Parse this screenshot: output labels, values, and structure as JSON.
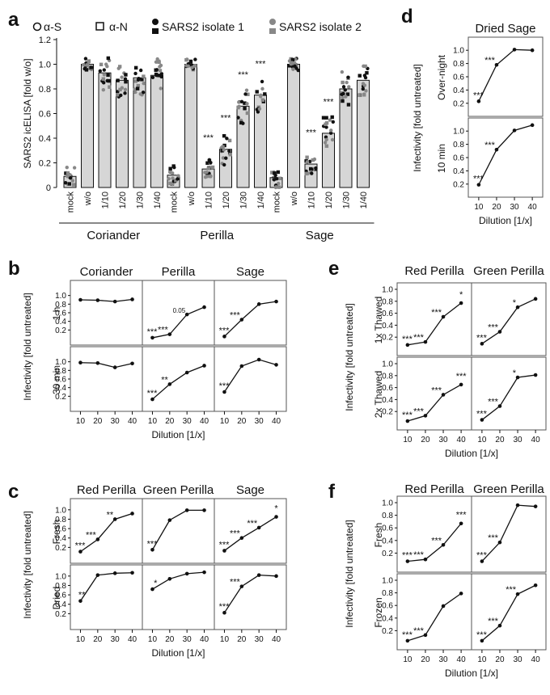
{
  "colors": {
    "bar": "#d6d6d6",
    "dark": "#111111",
    "gray": "#888888",
    "panel_border": "#555555"
  },
  "panel_labels": {
    "a": "a",
    "b": "b",
    "c": "c",
    "d": "d",
    "e": "e",
    "f": "f"
  },
  "legend": [
    "α-S",
    "α-N",
    "SARS2 isolate 1",
    "SARS2 isolate 2"
  ],
  "common": {
    "y_label_infectivity": "Infectivity [fold untreated]",
    "x_label_dilution": "Dilution [1/x]",
    "x_ticks": [
      "10",
      "20",
      "30",
      "40"
    ],
    "y_ticks": [
      "0.2",
      "0.4",
      "0.6",
      "0.8",
      "1.0"
    ]
  },
  "chart_data": [
    {
      "id": "a",
      "type": "bar",
      "ylabel": "SARS2 icELISA [fold w/o]",
      "ylim": [
        0,
        1.2
      ],
      "y_ticks": [
        "0",
        "0.2",
        "0.4",
        "0.6",
        "0.8",
        "1.0",
        "1.2"
      ],
      "categories": [
        "mock",
        "w/o",
        "1/10",
        "1/20",
        "1/30",
        "1/40"
      ],
      "groups": [
        {
          "name": "Coriander",
          "values": [
            0.09,
            1.0,
            0.93,
            0.87,
            0.89,
            0.91
          ],
          "stars": [
            "",
            "",
            "",
            "",
            "",
            ""
          ]
        },
        {
          "name": "Perilla",
          "values": [
            0.1,
            1.0,
            0.15,
            0.31,
            0.66,
            0.75
          ],
          "stars": [
            "",
            "",
            "***",
            "***",
            "***",
            "***"
          ]
        },
        {
          "name": "Sage",
          "values": [
            0.08,
            1.0,
            0.19,
            0.44,
            0.8,
            0.87
          ],
          "stars": [
            "",
            "",
            "***",
            "***",
            "",
            ""
          ]
        }
      ]
    },
    {
      "id": "b",
      "type": "line",
      "columns": [
        "Coriander",
        "Perilla",
        "Sage"
      ],
      "rows": [
        "1 h",
        "30 min"
      ],
      "x": [
        10,
        20,
        30,
        40
      ],
      "ylim": [
        0,
        1.2
      ],
      "y_ticks": [
        "0.2",
        "0.4",
        "0.6",
        "0.8",
        "1.0"
      ],
      "series": [
        {
          "row": 0,
          "col": 0,
          "values": [
            0.9,
            0.89,
            0.86,
            0.91
          ],
          "stars": [
            "",
            "",
            "",
            ""
          ]
        },
        {
          "row": 0,
          "col": 1,
          "values": [
            0.02,
            0.1,
            0.56,
            0.73
          ],
          "stars": [
            "***",
            "***",
            "0.05",
            ""
          ]
        },
        {
          "row": 0,
          "col": 2,
          "values": [
            0.05,
            0.44,
            0.8,
            0.86
          ],
          "stars": [
            "***",
            "***",
            "",
            ""
          ]
        },
        {
          "row": 1,
          "col": 0,
          "values": [
            0.98,
            0.97,
            0.87,
            0.96
          ],
          "stars": [
            "",
            "",
            "",
            ""
          ]
        },
        {
          "row": 1,
          "col": 1,
          "values": [
            0.13,
            0.48,
            0.75,
            0.91
          ],
          "stars": [
            "***",
            "**",
            "",
            ""
          ]
        },
        {
          "row": 1,
          "col": 2,
          "values": [
            0.3,
            0.9,
            1.05,
            0.93
          ],
          "stars": [
            "***",
            "",
            "",
            ""
          ]
        }
      ]
    },
    {
      "id": "c",
      "type": "line",
      "columns": [
        "Red Perilla",
        "Green Perilla",
        "Sage"
      ],
      "rows": [
        "Fresh",
        "Dried"
      ],
      "x": [
        10,
        20,
        30,
        40
      ],
      "ylim": [
        0,
        1.1
      ],
      "y_ticks": [
        "0.2",
        "0.4",
        "0.6",
        "0.8",
        "1.0"
      ],
      "series": [
        {
          "row": 0,
          "col": 0,
          "values": [
            0.11,
            0.37,
            0.8,
            0.92
          ],
          "stars": [
            "***",
            "***",
            "**",
            ""
          ]
        },
        {
          "row": 0,
          "col": 1,
          "values": [
            0.15,
            0.78,
            0.99,
            0.99
          ],
          "stars": [
            "***",
            "",
            "",
            ""
          ]
        },
        {
          "row": 0,
          "col": 2,
          "values": [
            0.13,
            0.4,
            0.62,
            0.85
          ],
          "stars": [
            "***",
            "***",
            "***",
            "*"
          ]
        },
        {
          "row": 1,
          "col": 0,
          "values": [
            0.47,
            1.02,
            1.06,
            1.07
          ],
          "stars": [
            "**",
            "",
            "",
            ""
          ]
        },
        {
          "row": 1,
          "col": 1,
          "values": [
            0.72,
            0.94,
            1.05,
            1.08
          ],
          "stars": [
            "*",
            "",
            "",
            ""
          ]
        },
        {
          "row": 1,
          "col": 2,
          "values": [
            0.22,
            0.78,
            1.02,
            1.0
          ],
          "stars": [
            "***",
            "***",
            "",
            ""
          ]
        }
      ]
    },
    {
      "id": "d",
      "type": "line",
      "columns": [
        "Dried Sage"
      ],
      "rows": [
        "Over-night",
        "10 min"
      ],
      "x": [
        10,
        20,
        30,
        40
      ],
      "ylim": [
        0.1,
        1.1
      ],
      "y_ticks": [
        "0.2",
        "0.4",
        "0.6",
        "0.8",
        "1.0"
      ],
      "series": [
        {
          "row": 0,
          "col": 0,
          "values": [
            0.23,
            0.78,
            1.01,
            1.0
          ],
          "stars": [
            "***",
            "***",
            "",
            ""
          ]
        },
        {
          "row": 1,
          "col": 0,
          "values": [
            0.19,
            0.72,
            1.01,
            1.09
          ],
          "stars": [
            "***",
            "***",
            "",
            ""
          ]
        }
      ]
    },
    {
      "id": "e",
      "type": "line",
      "columns": [
        "Red Perilla",
        "Green Perilla"
      ],
      "rows": [
        "1x Thawed",
        "2x Thawed"
      ],
      "x": [
        10,
        20,
        30,
        40
      ],
      "ylim": [
        0,
        1.0
      ],
      "y_ticks": [
        "0.2",
        "0.4",
        "0.6",
        "0.8",
        "1.0"
      ],
      "series": [
        {
          "row": 0,
          "col": 0,
          "values": [
            0.07,
            0.12,
            0.54,
            0.77
          ],
          "stars": [
            "***",
            "***",
            "***",
            "*"
          ]
        },
        {
          "row": 0,
          "col": 1,
          "values": [
            0.09,
            0.29,
            0.7,
            0.84
          ],
          "stars": [
            "***",
            "***",
            "*",
            ""
          ]
        },
        {
          "row": 1,
          "col": 0,
          "values": [
            0.04,
            0.13,
            0.48,
            0.65
          ],
          "stars": [
            "***",
            "***",
            "***",
            "***"
          ]
        },
        {
          "row": 1,
          "col": 1,
          "values": [
            0.06,
            0.29,
            0.77,
            0.81
          ],
          "stars": [
            "***",
            "***",
            "*",
            ""
          ]
        }
      ]
    },
    {
      "id": "f",
      "type": "line",
      "columns": [
        "Red Perilla",
        "Green Perilla"
      ],
      "rows": [
        "Fresh",
        "Frozen"
      ],
      "x": [
        10,
        20,
        30,
        40
      ],
      "ylim": [
        0,
        1.0
      ],
      "y_ticks": [
        "0.2",
        "0.4",
        "0.6",
        "0.8",
        "1.0"
      ],
      "series": [
        {
          "row": 0,
          "col": 0,
          "values": [
            0.07,
            0.1,
            0.33,
            0.67
          ],
          "stars": [
            "***",
            "***",
            "***",
            "***"
          ]
        },
        {
          "row": 0,
          "col": 1,
          "values": [
            0.07,
            0.37,
            0.96,
            0.94
          ],
          "stars": [
            "***",
            "***",
            "",
            ""
          ]
        },
        {
          "row": 1,
          "col": 0,
          "values": [
            0.04,
            0.13,
            0.59,
            0.79
          ],
          "stars": [
            "***",
            "***",
            "",
            ""
          ]
        },
        {
          "row": 1,
          "col": 1,
          "values": [
            0.04,
            0.28,
            0.78,
            0.92
          ],
          "stars": [
            "***",
            "***",
            "***",
            ""
          ]
        }
      ]
    }
  ]
}
